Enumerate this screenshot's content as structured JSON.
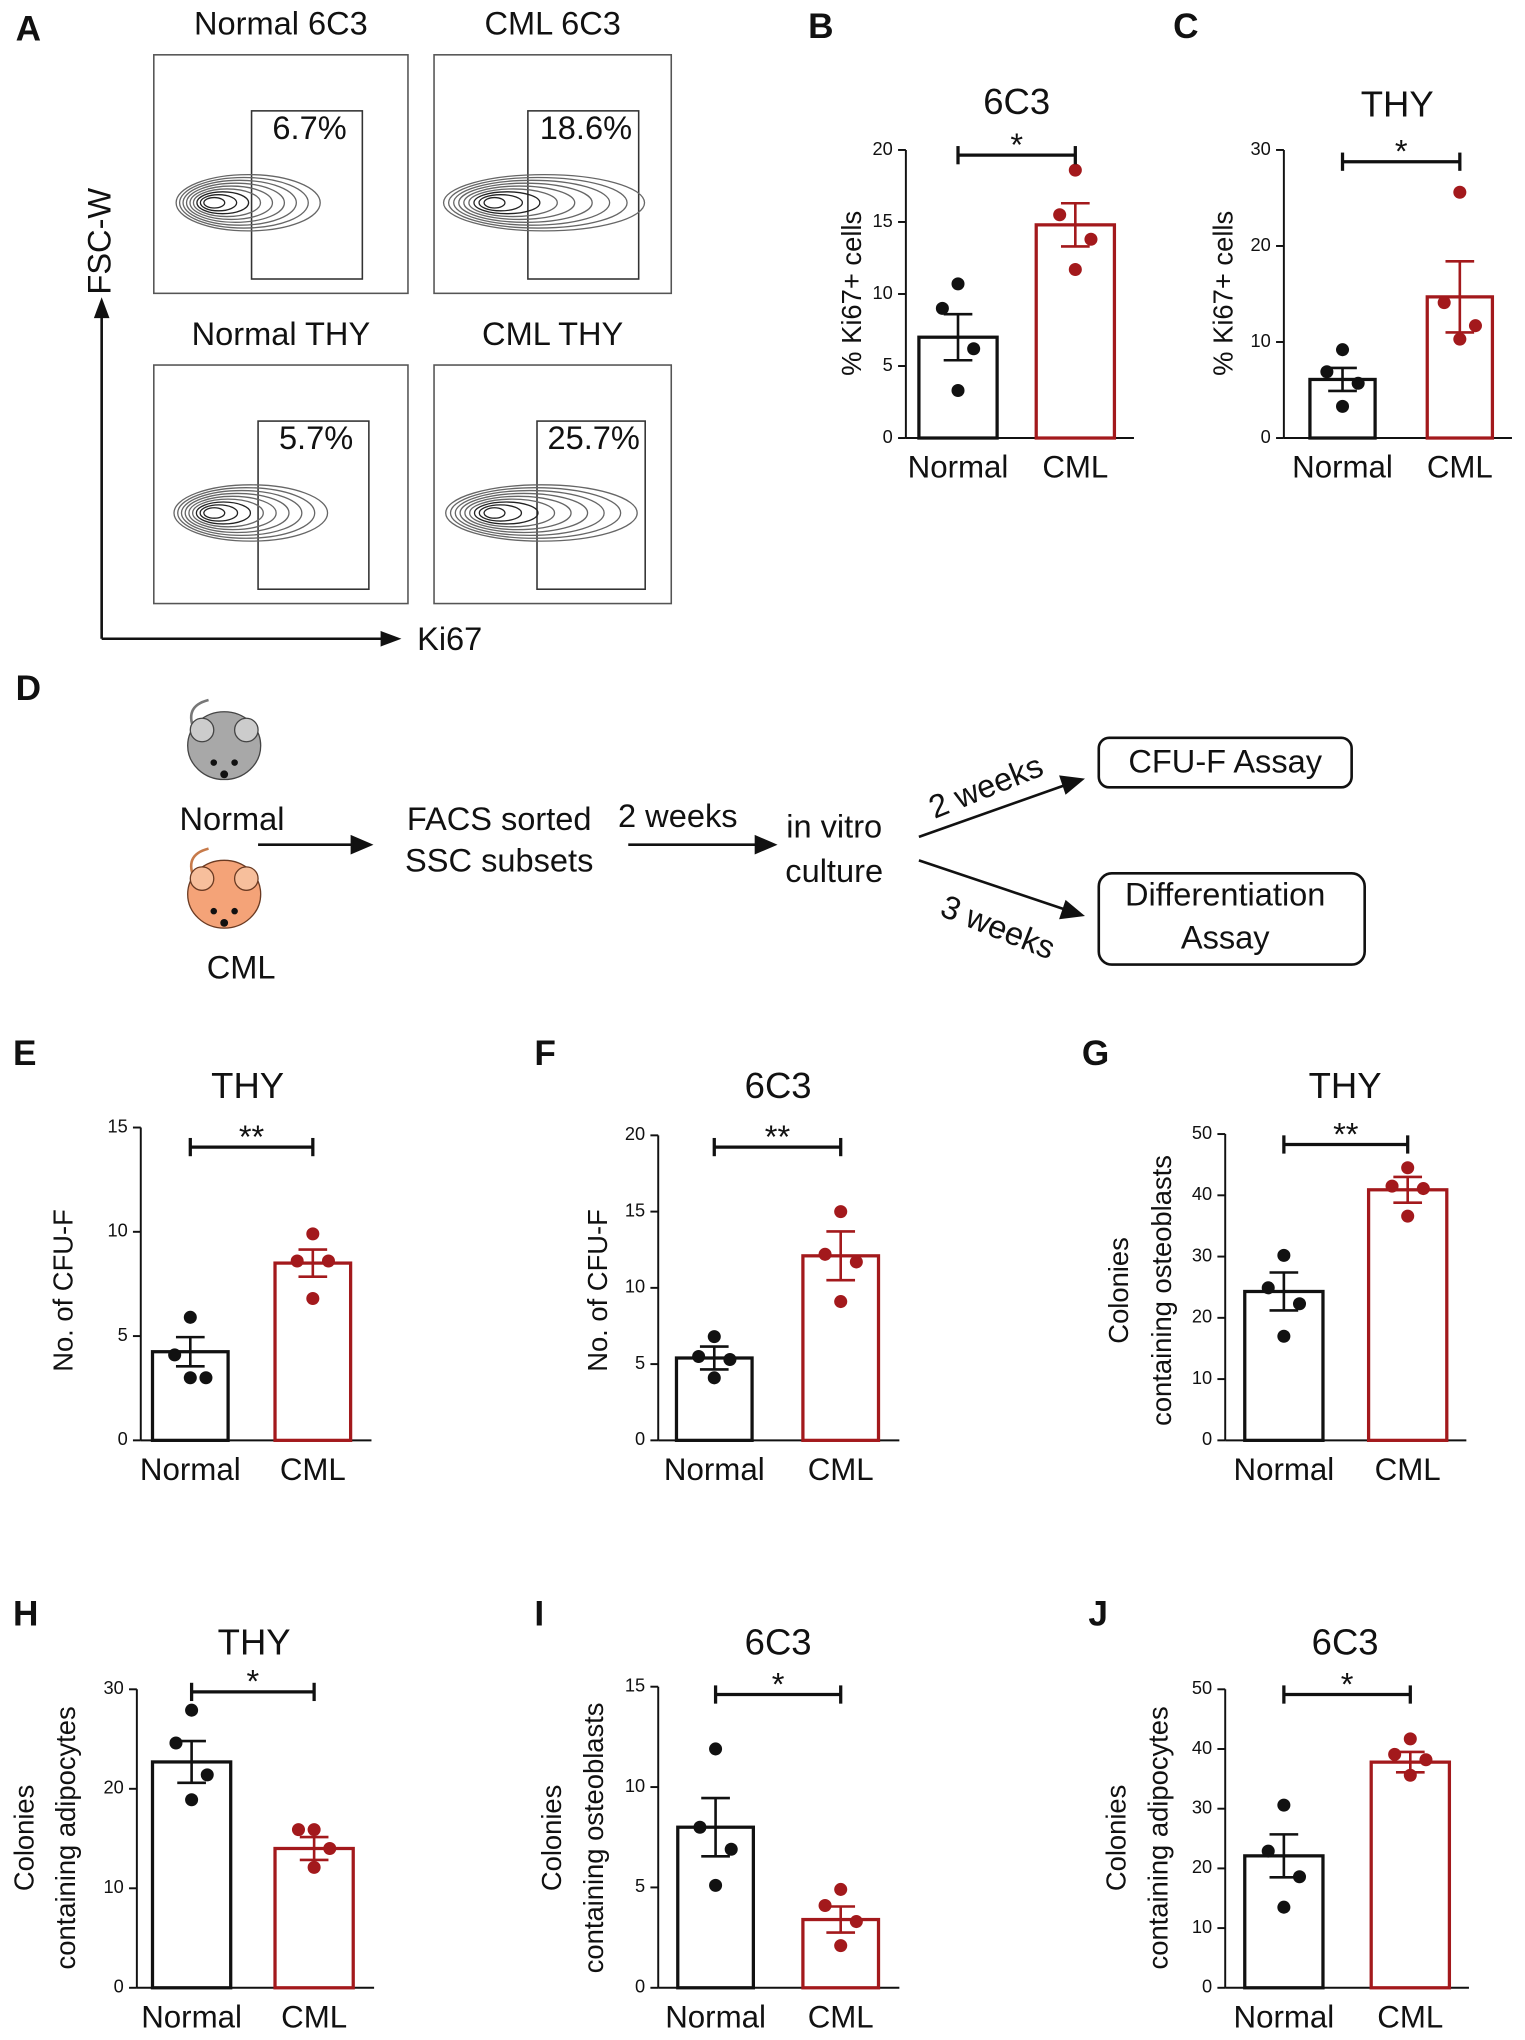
{
  "flow": {
    "panel": "A",
    "y_axis": "FSC-W",
    "x_axis": "Ki67",
    "plots": [
      {
        "title": "Normal 6C3",
        "gate": "6.7%"
      },
      {
        "title": "CML 6C3",
        "gate": "18.6%"
      },
      {
        "title": "Normal THY",
        "gate": "5.7%"
      },
      {
        "title": "CML THY",
        "gate": "25.7%"
      }
    ]
  },
  "diagram": {
    "panel": "D",
    "mice": [
      "Normal",
      "CML"
    ],
    "sort": [
      "FACS sorted",
      "SSC subsets"
    ],
    "step1": "2 weeks",
    "culture": [
      "in vitro",
      "culture"
    ],
    "step2": "2 weeks",
    "step3": "3 weeks",
    "assay1": "CFU-F Assay",
    "assay2": [
      "Differentiation",
      "Assay"
    ]
  },
  "chart_data": [
    {
      "type": "bar",
      "panel": "B",
      "title": "6C3",
      "ylabel": [
        "% Ki67+ cells"
      ],
      "categories": [
        "Normal",
        "CML"
      ],
      "values": [
        7.0,
        14.8
      ],
      "errors": [
        1.6,
        1.5
      ],
      "points": [
        [
          10.7,
          9.0,
          6.2,
          3.3
        ],
        [
          18.6,
          15.5,
          13.8,
          11.7
        ]
      ],
      "colors": [
        "#111111",
        "#a3191c"
      ],
      "significance": "*",
      "ylim": [
        0,
        20
      ],
      "yticks": [
        0,
        5,
        10,
        15,
        20
      ]
    },
    {
      "type": "bar",
      "panel": "C",
      "title": "THY",
      "ylabel": [
        "% Ki67+ cells"
      ],
      "categories": [
        "Normal",
        "CML"
      ],
      "values": [
        6.1,
        14.7
      ],
      "errors": [
        1.2,
        3.7
      ],
      "points": [
        [
          9.2,
          6.9,
          5.7,
          3.3
        ],
        [
          25.6,
          14.1,
          11.7,
          10.3
        ]
      ],
      "colors": [
        "#111111",
        "#a3191c"
      ],
      "significance": "*",
      "ylim": [
        0,
        30
      ],
      "yticks": [
        0,
        10,
        20,
        30
      ]
    },
    {
      "type": "bar",
      "panel": "E",
      "title": "THY",
      "ylabel": [
        "No. of CFU-F"
      ],
      "categories": [
        "Normal",
        "CML"
      ],
      "values": [
        4.25,
        8.5
      ],
      "errors": [
        0.7,
        0.65
      ],
      "points": [
        [
          5.9,
          4.1,
          3.0,
          3.0
        ],
        [
          9.9,
          8.6,
          8.6,
          6.8
        ]
      ],
      "colors": [
        "#111111",
        "#a3191c"
      ],
      "significance": "**",
      "ylim": [
        0,
        15
      ],
      "yticks": [
        0,
        5,
        10,
        15
      ]
    },
    {
      "type": "bar",
      "panel": "F",
      "title": "6C3",
      "ylabel": [
        "No. of CFU-F"
      ],
      "categories": [
        "Normal",
        "CML"
      ],
      "values": [
        5.4,
        12.1
      ],
      "errors": [
        0.75,
        1.6
      ],
      "points": [
        [
          6.8,
          5.5,
          5.3,
          4.1
        ],
        [
          15.0,
          12.2,
          11.7,
          9.1
        ]
      ],
      "colors": [
        "#111111",
        "#a3191c"
      ],
      "significance": "**",
      "ylim": [
        0,
        20
      ],
      "yticks": [
        0,
        5,
        10,
        15,
        20
      ]
    },
    {
      "type": "bar",
      "panel": "G",
      "title": "THY",
      "ylabel": [
        "Colonies",
        "containing osteoblasts"
      ],
      "categories": [
        "Normal",
        "CML"
      ],
      "values": [
        24.3,
        40.9
      ],
      "errors": [
        3.1,
        2.1
      ],
      "points": [
        [
          30.2,
          24.9,
          22.3,
          17.0
        ],
        [
          44.5,
          41.5,
          41.1,
          36.6
        ]
      ],
      "colors": [
        "#111111",
        "#a3191c"
      ],
      "significance": "**",
      "ylim": [
        0,
        50
      ],
      "yticks": [
        0,
        10,
        20,
        30,
        40,
        50
      ]
    },
    {
      "type": "bar",
      "panel": "H",
      "title": "THY",
      "ylabel": [
        "Colonies",
        "containing adipocytes"
      ],
      "categories": [
        "Normal",
        "CML"
      ],
      "values": [
        22.7,
        14.0
      ],
      "errors": [
        2.1,
        1.15
      ],
      "points": [
        [
          27.9,
          24.6,
          21.4,
          18.9
        ],
        [
          15.9,
          15.9,
          14.0,
          12.1
        ]
      ],
      "colors": [
        "#111111",
        "#a3191c"
      ],
      "significance": "*",
      "ylim": [
        0,
        30
      ],
      "yticks": [
        0,
        10,
        20,
        30
      ]
    },
    {
      "type": "bar",
      "panel": "I",
      "title": "6C3",
      "ylabel": [
        "Colonies",
        "containing osteoblasts"
      ],
      "categories": [
        "Normal",
        "CML"
      ],
      "values": [
        8.0,
        3.4
      ],
      "errors": [
        1.45,
        0.65
      ],
      "points": [
        [
          11.9,
          8.0,
          6.9,
          5.1
        ],
        [
          4.9,
          4.1,
          3.3,
          2.1
        ]
      ],
      "colors": [
        "#111111",
        "#a3191c"
      ],
      "significance": "*",
      "ylim": [
        0,
        15
      ],
      "yticks": [
        0,
        5,
        10,
        15
      ]
    },
    {
      "type": "bar",
      "panel": "J",
      "title": "6C3",
      "ylabel": [
        "Colonies",
        "containing adipocytes"
      ],
      "categories": [
        "Normal",
        "CML"
      ],
      "values": [
        22.1,
        37.8
      ],
      "errors": [
        3.6,
        1.7
      ],
      "points": [
        [
          30.6,
          22.9,
          18.6,
          13.5
        ],
        [
          41.7,
          39.1,
          38.2,
          35.6
        ]
      ],
      "colors": [
        "#111111",
        "#a3191c"
      ],
      "significance": "*",
      "ylim": [
        0,
        50
      ],
      "yticks": [
        0,
        10,
        20,
        30,
        40,
        50
      ]
    }
  ]
}
